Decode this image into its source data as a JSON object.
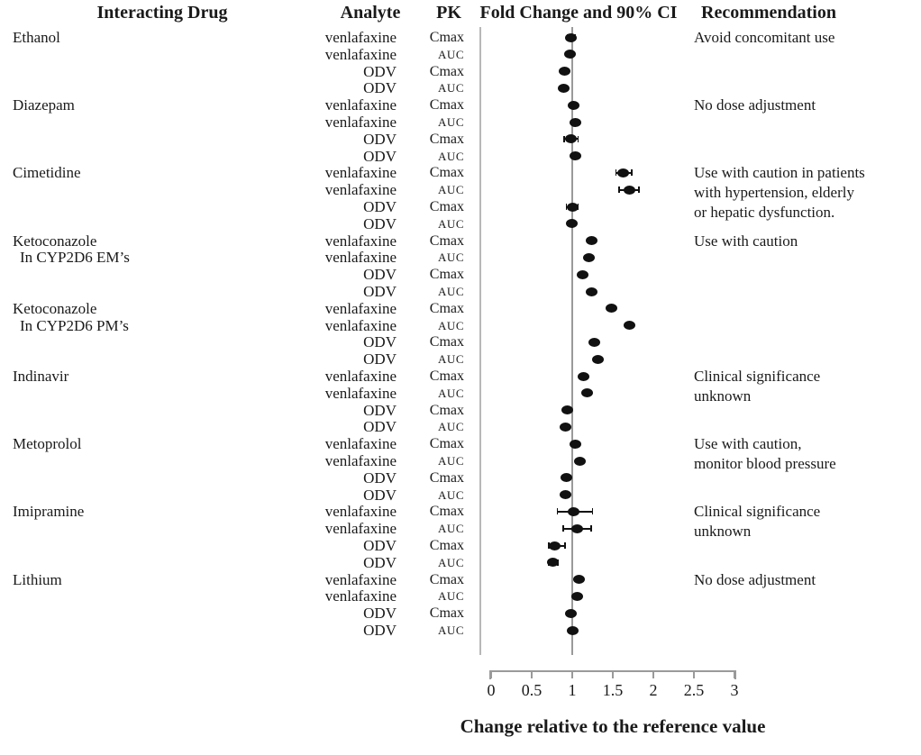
{
  "header": {
    "col_interacting_drug": "Interacting Drug",
    "col_analyte": "Analyte",
    "col_pk": "PK",
    "col_fold_change": "Fold Change and 90% CI",
    "col_recommendation": "Recommendation"
  },
  "chart_data": {
    "type": "scatter",
    "subtype": "forest-plot",
    "xlabel": "Change relative to the reference value",
    "x_ticks": [
      0,
      0.5,
      1,
      1.5,
      2,
      2.5,
      3
    ],
    "xlim": [
      0,
      3
    ],
    "reference_line": 1,
    "grid": false,
    "legend": "none",
    "groups": [
      {
        "drug": "Ethanol",
        "drug_line2": "",
        "recommendation": "Avoid concomitant use",
        "rows": [
          {
            "analyte": "venlafaxine",
            "pk": "Cmax",
            "value": 0.98,
            "ci": [
              0.93,
              1.04
            ]
          },
          {
            "analyte": "venlafaxine",
            "pk": "AUC",
            "value": 0.97,
            "ci": [
              0.93,
              1.01
            ]
          },
          {
            "analyte": "ODV",
            "pk": "Cmax",
            "value": 0.91,
            "ci": null
          },
          {
            "analyte": "ODV",
            "pk": "AUC",
            "value": 0.89,
            "ci": null
          }
        ]
      },
      {
        "drug": "Diazepam",
        "drug_line2": "",
        "recommendation": "No dose adjustment",
        "rows": [
          {
            "analyte": "venlafaxine",
            "pk": "Cmax",
            "value": 1.02,
            "ci": null
          },
          {
            "analyte": "venlafaxine",
            "pk": "AUC",
            "value": 1.04,
            "ci": null
          },
          {
            "analyte": "ODV",
            "pk": "Cmax",
            "value": 0.98,
            "ci": [
              0.89,
              1.08
            ]
          },
          {
            "analyte": "ODV",
            "pk": "AUC",
            "value": 1.04,
            "ci": null
          }
        ]
      },
      {
        "drug": "Cimetidine",
        "drug_line2": "",
        "recommendation": "Use with caution in patients\nwith hypertension, elderly\nor hepatic dysfunction.",
        "rows": [
          {
            "analyte": "venlafaxine",
            "pk": "Cmax",
            "value": 1.63,
            "ci": [
              1.53,
              1.74
            ]
          },
          {
            "analyte": "venlafaxine",
            "pk": "AUC",
            "value": 1.7,
            "ci": [
              1.57,
              1.83
            ]
          },
          {
            "analyte": "ODV",
            "pk": "Cmax",
            "value": 1.0,
            "ci": [
              0.92,
              1.08
            ]
          },
          {
            "analyte": "ODV",
            "pk": "AUC",
            "value": 0.99,
            "ci": null
          }
        ]
      },
      {
        "drug": "Ketoconazole",
        "drug_line2": "In CYP2D6 EM’s",
        "recommendation": "Use with caution",
        "rows": [
          {
            "analyte": "venlafaxine",
            "pk": "Cmax",
            "value": 1.24,
            "ci": null
          },
          {
            "analyte": "venlafaxine",
            "pk": "AUC",
            "value": 1.21,
            "ci": null
          },
          {
            "analyte": "ODV",
            "pk": "Cmax",
            "value": 1.13,
            "ci": null
          },
          {
            "analyte": "ODV",
            "pk": "AUC",
            "value": 1.24,
            "ci": null
          }
        ]
      },
      {
        "drug": "Ketoconazole",
        "drug_line2": "In CYP2D6 PM’s",
        "recommendation": "",
        "rows": [
          {
            "analyte": "venlafaxine",
            "pk": "Cmax",
            "value": 1.48,
            "ci": null
          },
          {
            "analyte": "venlafaxine",
            "pk": "AUC",
            "value": 1.7,
            "ci": null
          },
          {
            "analyte": "ODV",
            "pk": "Cmax",
            "value": 1.27,
            "ci": null
          },
          {
            "analyte": "ODV",
            "pk": "AUC",
            "value": 1.32,
            "ci": null
          }
        ]
      },
      {
        "drug": "Indinavir",
        "drug_line2": "",
        "recommendation": "Clinical significance\nunknown",
        "rows": [
          {
            "analyte": "venlafaxine",
            "pk": "Cmax",
            "value": 1.14,
            "ci": null
          },
          {
            "analyte": "venlafaxine",
            "pk": "AUC",
            "value": 1.18,
            "ci": null
          },
          {
            "analyte": "ODV",
            "pk": "Cmax",
            "value": 0.94,
            "ci": null
          },
          {
            "analyte": "ODV",
            "pk": "AUC",
            "value": 0.92,
            "ci": null
          }
        ]
      },
      {
        "drug": "Metoprolol",
        "drug_line2": "",
        "recommendation": "Use with caution,\nmonitor blood pressure",
        "rows": [
          {
            "analyte": "venlafaxine",
            "pk": "Cmax",
            "value": 1.04,
            "ci": null
          },
          {
            "analyte": "venlafaxine",
            "pk": "AUC",
            "value": 1.09,
            "ci": null
          },
          {
            "analyte": "ODV",
            "pk": "Cmax",
            "value": 0.93,
            "ci": null
          },
          {
            "analyte": "ODV",
            "pk": "AUC",
            "value": 0.92,
            "ci": null
          }
        ]
      },
      {
        "drug": "Imipramine",
        "drug_line2": "",
        "recommendation": "Clinical significance\nunknown",
        "rows": [
          {
            "analyte": "venlafaxine",
            "pk": "Cmax",
            "value": 1.02,
            "ci": [
              0.81,
              1.26
            ]
          },
          {
            "analyte": "venlafaxine",
            "pk": "AUC",
            "value": 1.06,
            "ci": [
              0.88,
              1.24
            ]
          },
          {
            "analyte": "ODV",
            "pk": "Cmax",
            "value": 0.78,
            "ci": [
              0.7,
              0.92
            ]
          },
          {
            "analyte": "ODV",
            "pk": "AUC",
            "value": 0.76,
            "ci": [
              0.7,
              0.83
            ]
          }
        ]
      },
      {
        "drug": "Lithium",
        "drug_line2": "",
        "recommendation": "No dose adjustment",
        "rows": [
          {
            "analyte": "venlafaxine",
            "pk": "Cmax",
            "value": 1.08,
            "ci": null
          },
          {
            "analyte": "venlafaxine",
            "pk": "AUC",
            "value": 1.06,
            "ci": null
          },
          {
            "analyte": "ODV",
            "pk": "Cmax",
            "value": 0.98,
            "ci": null
          },
          {
            "analyte": "ODV",
            "pk": "AUC",
            "value": 1.0,
            "ci": null
          }
        ]
      }
    ]
  },
  "colors": {
    "dot": "#111111",
    "axis_gray": "#9a9a9a",
    "frame_gray": "#b8b8b8",
    "text": "#1a1a1a"
  }
}
